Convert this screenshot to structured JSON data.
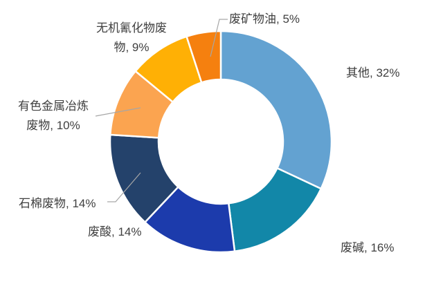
{
  "chart_data": {
    "type": "pie",
    "subtype": "donut",
    "title": "",
    "unit": "%",
    "direction": "clockwise",
    "start_angle_deg": 0,
    "hole_ratio": 0.5625,
    "background": "#FFFFFF",
    "label_color": "#404040",
    "leader_line_color": "#A6A6A6",
    "categories": [
      "其他",
      "废碱",
      "废酸",
      "石棉废物",
      "有色金属冶炼废物",
      "无机氰化物废物",
      "废矿物油"
    ],
    "values": [
      32,
      16,
      14,
      14,
      10,
      9,
      5
    ],
    "segments": [
      {
        "name": "其他",
        "value": 32,
        "color": "#63A2D1",
        "label": "其他, 32%"
      },
      {
        "name": "废碱",
        "value": 16,
        "color": "#1287A8",
        "label": "废碱, 16%"
      },
      {
        "name": "废酸",
        "value": 14,
        "color": "#1C3BAC",
        "label": "废酸, 14%"
      },
      {
        "name": "石棉废物",
        "value": 14,
        "color": "#24426B",
        "label": "石棉废物, 14%"
      },
      {
        "name": "有色金属冶炼废物",
        "value": 10,
        "color": "#FBA450",
        "label": "有色金属冶炼\n废物, 10%"
      },
      {
        "name": "无机氰化物废物",
        "value": 9,
        "color": "#FFB005",
        "label": "无机氰化物废\n物, 9%"
      },
      {
        "name": "废矿物油",
        "value": 5,
        "color": "#F5800F",
        "label": "废矿物油, 5%"
      }
    ],
    "legend": "none",
    "data_labels": "outside-end-category-percent"
  }
}
